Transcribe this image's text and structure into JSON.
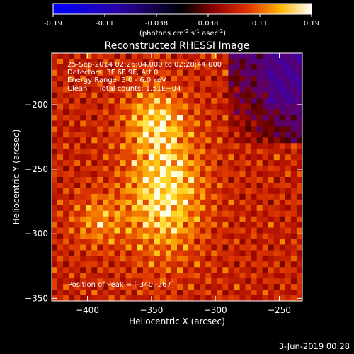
{
  "chart_data": {
    "type": "heatmap",
    "title": "Reconstructed RHESSI Image",
    "xlabel": "Heliocentric X (arcsec)",
    "ylabel": "Heliocentric Y (arcsec)",
    "xlim": [
      -428,
      -232
    ],
    "ylim": [
      -352,
      -160
    ],
    "x_ticks": [
      -400,
      -350,
      -300,
      -250
    ],
    "y_ticks": [
      -200,
      -250,
      -300,
      -350
    ],
    "colorbar": {
      "range": [
        -0.19,
        0.19
      ],
      "ticks": [
        "-0.19",
        "-0.11",
        "-0.038",
        "0.038",
        "0.11",
        "0.19"
      ],
      "label": "(photons cm",
      "label_exp1": "-2",
      "label_mid1": " s",
      "label_exp2": "-1",
      "label_mid2": " asec",
      "label_exp3": "-2",
      "label_end": ")"
    },
    "annotations": {
      "time_range": "25-Sep-2014 02:26:04.000 to 02:28:44.000",
      "detectors": "Detectors: 3F 6F 9F, Att 0",
      "energy_range": "Energy Range: 3.0 - 6.0 keV",
      "clean_counts": "Clean     Total counts: 1.51E+04",
      "peak_position": "Position of Peak = [-340,-267]"
    },
    "peak": {
      "x": -340,
      "y": -267
    },
    "colors": {
      "min": "#0000ff",
      "mid": "#000000",
      "max": "#ffffff"
    }
  },
  "footer": {
    "date": "3-Jun-2019 00:28"
  }
}
